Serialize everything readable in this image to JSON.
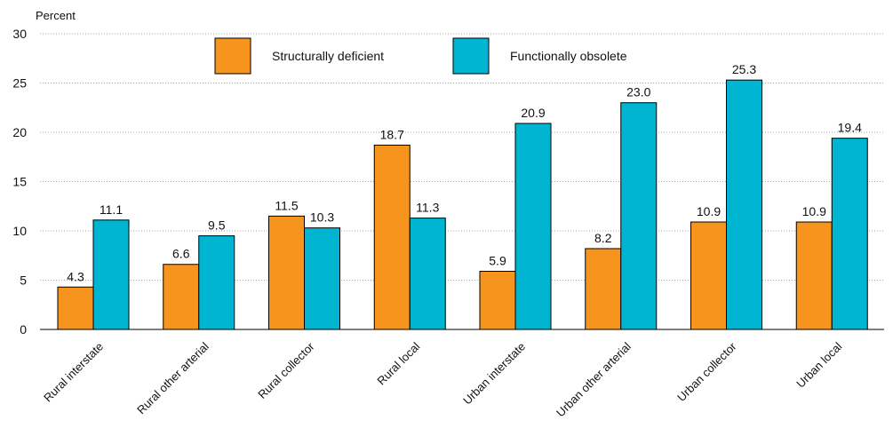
{
  "chart_data": {
    "type": "bar",
    "ylabel": "Percent",
    "ylim": [
      0,
      30
    ],
    "yticks": [
      0,
      5,
      10,
      15,
      20,
      25,
      30
    ],
    "grid": true,
    "legend_position": "top-center",
    "categories": [
      "Rural interstate",
      "Rural other arterial",
      "Rural collector",
      "Rural local",
      "Urban interstate",
      "Urban other arterial",
      "Urban collector",
      "Urban local"
    ],
    "series": [
      {
        "name": "Structurally deficient",
        "color": "#F7941D",
        "values": [
          4.3,
          6.6,
          11.5,
          18.7,
          5.9,
          8.2,
          10.9,
          10.9
        ],
        "labels": [
          "4.3",
          "6.6",
          "11.5",
          "18.7",
          "5.9",
          "8.2",
          "10.9",
          "10.9"
        ]
      },
      {
        "name": "Functionally obsolete",
        "color": "#00B5D1",
        "values": [
          11.1,
          9.5,
          10.3,
          11.3,
          20.9,
          23.0,
          25.3,
          19.4
        ],
        "labels": [
          "11.1",
          "9.5",
          "10.3",
          "11.3",
          "20.9",
          "23.0",
          "25.3",
          "19.4"
        ]
      }
    ]
  }
}
